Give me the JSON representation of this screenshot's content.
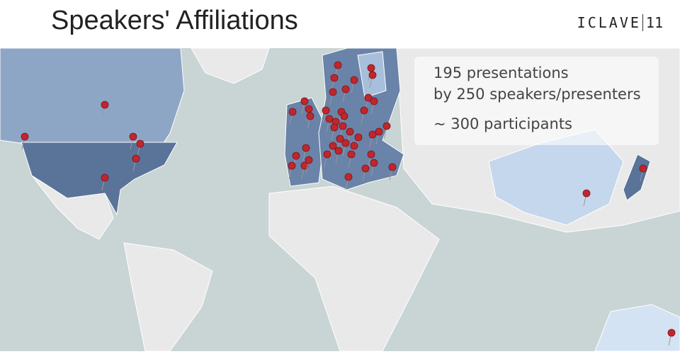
{
  "header": {
    "title": "Speakers' Affiliations",
    "logo": {
      "name": "ICLAVE",
      "edition": "11"
    }
  },
  "stats": {
    "lines": [
      "195 presentations",
      "by 250 speakers/presenters",
      "~ 300 participants"
    ]
  }
}
